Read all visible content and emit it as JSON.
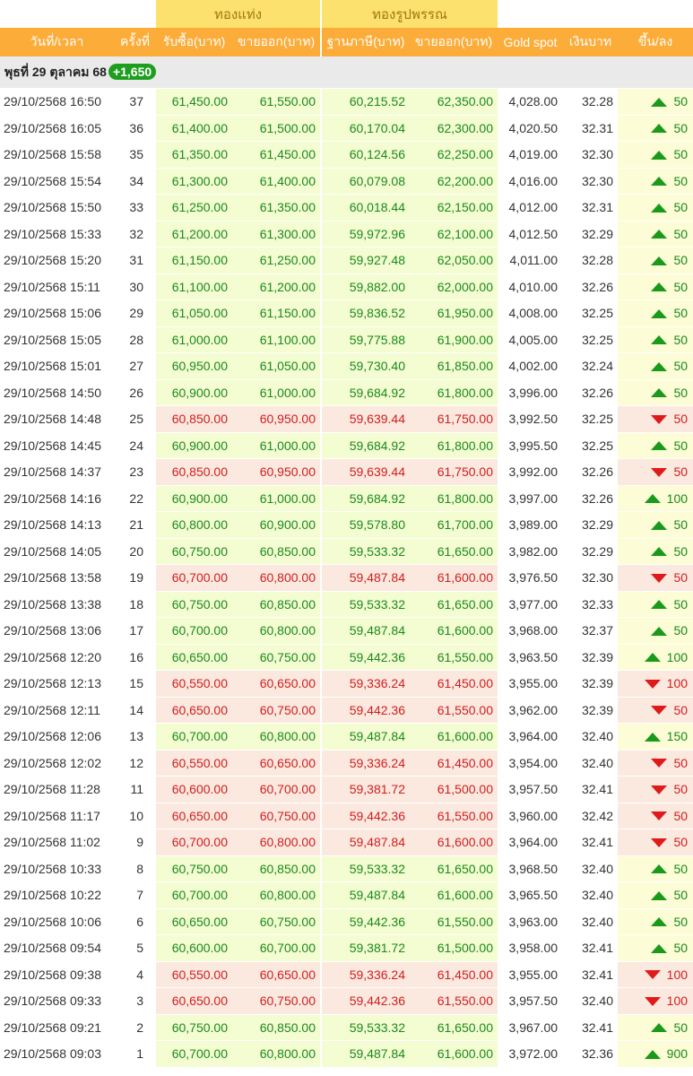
{
  "groups": {
    "bar": "ทองแท่ง",
    "ornament": "ทองรูปพรรณ"
  },
  "headers": {
    "datetime": "วันที่/เวลา",
    "no": "ครั้งที่",
    "bar_buy": "รับซื้อ(บาท)",
    "bar_sell": "ขายออก(บาท)",
    "orn_base": "ฐานภาษี(บาท)",
    "orn_sell": "ขายออก(บาท)",
    "spot": "Gold spot",
    "thb": "เงินบาท",
    "change": "ขึ้น/ลง"
  },
  "day": {
    "label": "พุธที่ 29 ตุลาคม 68",
    "total": "+1,650",
    "total_color": "#1e9e1e"
  },
  "colors": {
    "up": "#1a8a1a",
    "down": "#d01d1d",
    "header": "#fcac39",
    "group": "#fde16e"
  },
  "rows": [
    {
      "dt": "29/10/2568 16:50",
      "no": "37",
      "bar_buy": "61,450.00",
      "bar_sell": "61,550.00",
      "orn_base": "60,215.52",
      "orn_sell": "62,350.00",
      "spot": "4,028.00",
      "thb": "32.28",
      "dir": "up",
      "chg": "50"
    },
    {
      "dt": "29/10/2568 16:05",
      "no": "36",
      "bar_buy": "61,400.00",
      "bar_sell": "61,500.00",
      "orn_base": "60,170.04",
      "orn_sell": "62,300.00",
      "spot": "4,020.50",
      "thb": "32.31",
      "dir": "up",
      "chg": "50"
    },
    {
      "dt": "29/10/2568 15:58",
      "no": "35",
      "bar_buy": "61,350.00",
      "bar_sell": "61,450.00",
      "orn_base": "60,124.56",
      "orn_sell": "62,250.00",
      "spot": "4,019.00",
      "thb": "32.30",
      "dir": "up",
      "chg": "50"
    },
    {
      "dt": "29/10/2568 15:54",
      "no": "34",
      "bar_buy": "61,300.00",
      "bar_sell": "61,400.00",
      "orn_base": "60,079.08",
      "orn_sell": "62,200.00",
      "spot": "4,016.00",
      "thb": "32.30",
      "dir": "up",
      "chg": "50"
    },
    {
      "dt": "29/10/2568 15:50",
      "no": "33",
      "bar_buy": "61,250.00",
      "bar_sell": "61,350.00",
      "orn_base": "60,018.44",
      "orn_sell": "62,150.00",
      "spot": "4,012.00",
      "thb": "32.31",
      "dir": "up",
      "chg": "50"
    },
    {
      "dt": "29/10/2568 15:33",
      "no": "32",
      "bar_buy": "61,200.00",
      "bar_sell": "61,300.00",
      "orn_base": "59,972.96",
      "orn_sell": "62,100.00",
      "spot": "4,012.50",
      "thb": "32.29",
      "dir": "up",
      "chg": "50"
    },
    {
      "dt": "29/10/2568 15:20",
      "no": "31",
      "bar_buy": "61,150.00",
      "bar_sell": "61,250.00",
      "orn_base": "59,927.48",
      "orn_sell": "62,050.00",
      "spot": "4,011.00",
      "thb": "32.28",
      "dir": "up",
      "chg": "50"
    },
    {
      "dt": "29/10/2568 15:11",
      "no": "30",
      "bar_buy": "61,100.00",
      "bar_sell": "61,200.00",
      "orn_base": "59,882.00",
      "orn_sell": "62,000.00",
      "spot": "4,010.00",
      "thb": "32.26",
      "dir": "up",
      "chg": "50"
    },
    {
      "dt": "29/10/2568 15:06",
      "no": "29",
      "bar_buy": "61,050.00",
      "bar_sell": "61,150.00",
      "orn_base": "59,836.52",
      "orn_sell": "61,950.00",
      "spot": "4,008.00",
      "thb": "32.25",
      "dir": "up",
      "chg": "50"
    },
    {
      "dt": "29/10/2568 15:05",
      "no": "28",
      "bar_buy": "61,000.00",
      "bar_sell": "61,100.00",
      "orn_base": "59,775.88",
      "orn_sell": "61,900.00",
      "spot": "4,005.00",
      "thb": "32.25",
      "dir": "up",
      "chg": "50"
    },
    {
      "dt": "29/10/2568 15:01",
      "no": "27",
      "bar_buy": "60,950.00",
      "bar_sell": "61,050.00",
      "orn_base": "59,730.40",
      "orn_sell": "61,850.00",
      "spot": "4,002.00",
      "thb": "32.24",
      "dir": "up",
      "chg": "50"
    },
    {
      "dt": "29/10/2568 14:50",
      "no": "26",
      "bar_buy": "60,900.00",
      "bar_sell": "61,000.00",
      "orn_base": "59,684.92",
      "orn_sell": "61,800.00",
      "spot": "3,996.00",
      "thb": "32.26",
      "dir": "up",
      "chg": "50"
    },
    {
      "dt": "29/10/2568 14:48",
      "no": "25",
      "bar_buy": "60,850.00",
      "bar_sell": "60,950.00",
      "orn_base": "59,639.44",
      "orn_sell": "61,750.00",
      "spot": "3,992.50",
      "thb": "32.25",
      "dir": "down",
      "chg": "50"
    },
    {
      "dt": "29/10/2568 14:45",
      "no": "24",
      "bar_buy": "60,900.00",
      "bar_sell": "61,000.00",
      "orn_base": "59,684.92",
      "orn_sell": "61,800.00",
      "spot": "3,995.50",
      "thb": "32.25",
      "dir": "up",
      "chg": "50"
    },
    {
      "dt": "29/10/2568 14:37",
      "no": "23",
      "bar_buy": "60,850.00",
      "bar_sell": "60,950.00",
      "orn_base": "59,639.44",
      "orn_sell": "61,750.00",
      "spot": "3,992.00",
      "thb": "32.26",
      "dir": "down",
      "chg": "50"
    },
    {
      "dt": "29/10/2568 14:16",
      "no": "22",
      "bar_buy": "60,900.00",
      "bar_sell": "61,000.00",
      "orn_base": "59,684.92",
      "orn_sell": "61,800.00",
      "spot": "3,997.00",
      "thb": "32.26",
      "dir": "up",
      "chg": "100"
    },
    {
      "dt": "29/10/2568 14:13",
      "no": "21",
      "bar_buy": "60,800.00",
      "bar_sell": "60,900.00",
      "orn_base": "59,578.80",
      "orn_sell": "61,700.00",
      "spot": "3,989.00",
      "thb": "32.29",
      "dir": "up",
      "chg": "50"
    },
    {
      "dt": "29/10/2568 14:05",
      "no": "20",
      "bar_buy": "60,750.00",
      "bar_sell": "60,850.00",
      "orn_base": "59,533.32",
      "orn_sell": "61,650.00",
      "spot": "3,982.00",
      "thb": "32.29",
      "dir": "up",
      "chg": "50"
    },
    {
      "dt": "29/10/2568 13:58",
      "no": "19",
      "bar_buy": "60,700.00",
      "bar_sell": "60,800.00",
      "orn_base": "59,487.84",
      "orn_sell": "61,600.00",
      "spot": "3,976.50",
      "thb": "32.30",
      "dir": "down",
      "chg": "50"
    },
    {
      "dt": "29/10/2568 13:38",
      "no": "18",
      "bar_buy": "60,750.00",
      "bar_sell": "60,850.00",
      "orn_base": "59,533.32",
      "orn_sell": "61,650.00",
      "spot": "3,977.00",
      "thb": "32.33",
      "dir": "up",
      "chg": "50"
    },
    {
      "dt": "29/10/2568 13:06",
      "no": "17",
      "bar_buy": "60,700.00",
      "bar_sell": "60,800.00",
      "orn_base": "59,487.84",
      "orn_sell": "61,600.00",
      "spot": "3,968.00",
      "thb": "32.37",
      "dir": "up",
      "chg": "50"
    },
    {
      "dt": "29/10/2568 12:20",
      "no": "16",
      "bar_buy": "60,650.00",
      "bar_sell": "60,750.00",
      "orn_base": "59,442.36",
      "orn_sell": "61,550.00",
      "spot": "3,963.50",
      "thb": "32.39",
      "dir": "up",
      "chg": "100"
    },
    {
      "dt": "29/10/2568 12:13",
      "no": "15",
      "bar_buy": "60,550.00",
      "bar_sell": "60,650.00",
      "orn_base": "59,336.24",
      "orn_sell": "61,450.00",
      "spot": "3,955.00",
      "thb": "32.39",
      "dir": "down",
      "chg": "100"
    },
    {
      "dt": "29/10/2568 12:11",
      "no": "14",
      "bar_buy": "60,650.00",
      "bar_sell": "60,750.00",
      "orn_base": "59,442.36",
      "orn_sell": "61,550.00",
      "spot": "3,962.00",
      "thb": "32.39",
      "dir": "down",
      "chg": "50"
    },
    {
      "dt": "29/10/2568 12:06",
      "no": "13",
      "bar_buy": "60,700.00",
      "bar_sell": "60,800.00",
      "orn_base": "59,487.84",
      "orn_sell": "61,600.00",
      "spot": "3,964.00",
      "thb": "32.40",
      "dir": "up",
      "chg": "150"
    },
    {
      "dt": "29/10/2568 12:02",
      "no": "12",
      "bar_buy": "60,550.00",
      "bar_sell": "60,650.00",
      "orn_base": "59,336.24",
      "orn_sell": "61,450.00",
      "spot": "3,954.00",
      "thb": "32.40",
      "dir": "down",
      "chg": "50"
    },
    {
      "dt": "29/10/2568 11:28",
      "no": "11",
      "bar_buy": "60,600.00",
      "bar_sell": "60,700.00",
      "orn_base": "59,381.72",
      "orn_sell": "61,500.00",
      "spot": "3,957.50",
      "thb": "32.41",
      "dir": "down",
      "chg": "50"
    },
    {
      "dt": "29/10/2568 11:17",
      "no": "10",
      "bar_buy": "60,650.00",
      "bar_sell": "60,750.00",
      "orn_base": "59,442.36",
      "orn_sell": "61,550.00",
      "spot": "3,960.00",
      "thb": "32.42",
      "dir": "down",
      "chg": "50"
    },
    {
      "dt": "29/10/2568 11:02",
      "no": "9",
      "bar_buy": "60,700.00",
      "bar_sell": "60,800.00",
      "orn_base": "59,487.84",
      "orn_sell": "61,600.00",
      "spot": "3,964.00",
      "thb": "32.41",
      "dir": "down",
      "chg": "50"
    },
    {
      "dt": "29/10/2568 10:33",
      "no": "8",
      "bar_buy": "60,750.00",
      "bar_sell": "60,850.00",
      "orn_base": "59,533.32",
      "orn_sell": "61,650.00",
      "spot": "3,968.50",
      "thb": "32.40",
      "dir": "up",
      "chg": "50"
    },
    {
      "dt": "29/10/2568 10:22",
      "no": "7",
      "bar_buy": "60,700.00",
      "bar_sell": "60,800.00",
      "orn_base": "59,487.84",
      "orn_sell": "61,600.00",
      "spot": "3,965.50",
      "thb": "32.40",
      "dir": "up",
      "chg": "50"
    },
    {
      "dt": "29/10/2568 10:06",
      "no": "6",
      "bar_buy": "60,650.00",
      "bar_sell": "60,750.00",
      "orn_base": "59,442.36",
      "orn_sell": "61,550.00",
      "spot": "3,963.00",
      "thb": "32.40",
      "dir": "up",
      "chg": "50"
    },
    {
      "dt": "29/10/2568 09:54",
      "no": "5",
      "bar_buy": "60,600.00",
      "bar_sell": "60,700.00",
      "orn_base": "59,381.72",
      "orn_sell": "61,500.00",
      "spot": "3,958.00",
      "thb": "32.41",
      "dir": "up",
      "chg": "50"
    },
    {
      "dt": "29/10/2568 09:38",
      "no": "4",
      "bar_buy": "60,550.00",
      "bar_sell": "60,650.00",
      "orn_base": "59,336.24",
      "orn_sell": "61,450.00",
      "spot": "3,955.00",
      "thb": "32.41",
      "dir": "down",
      "chg": "100"
    },
    {
      "dt": "29/10/2568 09:33",
      "no": "3",
      "bar_buy": "60,650.00",
      "bar_sell": "60,750.00",
      "orn_base": "59,442.36",
      "orn_sell": "61,550.00",
      "spot": "3,957.50",
      "thb": "32.40",
      "dir": "down",
      "chg": "100"
    },
    {
      "dt": "29/10/2568 09:21",
      "no": "2",
      "bar_buy": "60,750.00",
      "bar_sell": "60,850.00",
      "orn_base": "59,533.32",
      "orn_sell": "61,650.00",
      "spot": "3,967.00",
      "thb": "32.41",
      "dir": "up",
      "chg": "50"
    },
    {
      "dt": "29/10/2568 09:03",
      "no": "1",
      "bar_buy": "60,700.00",
      "bar_sell": "60,800.00",
      "orn_base": "59,487.84",
      "orn_sell": "61,600.00",
      "spot": "3,972.00",
      "thb": "32.36",
      "dir": "up",
      "chg": "900"
    }
  ]
}
